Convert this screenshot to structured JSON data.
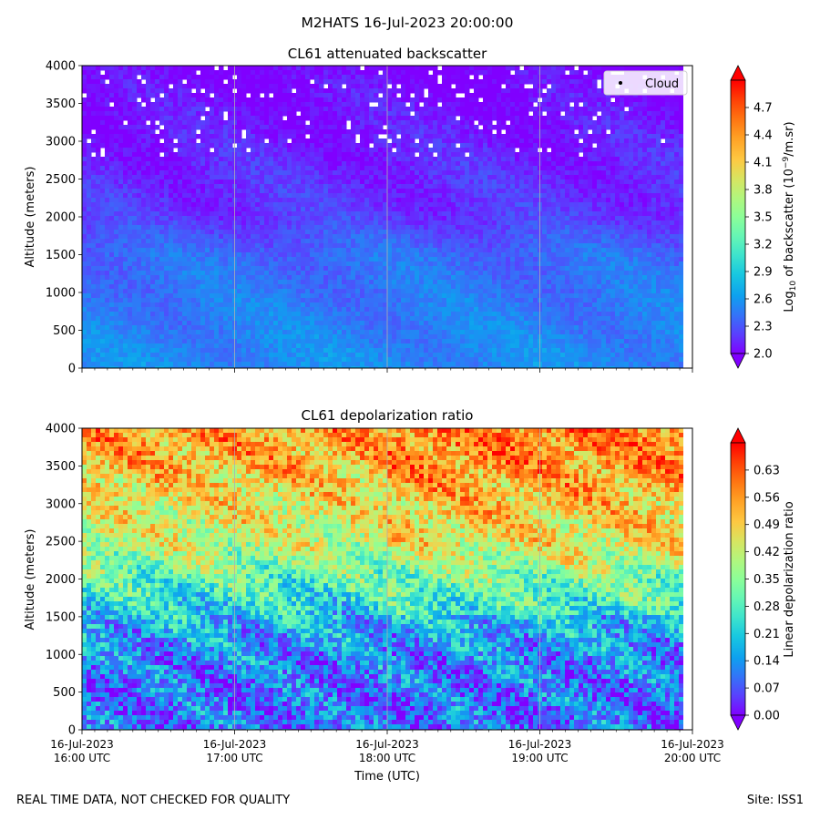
{
  "figure": {
    "title": "M2HATS 16-Jul-2023 20:00:00",
    "footer_left": "REAL TIME DATA, NOT CHECKED FOR QUALITY",
    "footer_right": "Site: ISS1"
  },
  "colors": {
    "rainbow": [
      "#8000ff",
      "#5a3ffe",
      "#3473f8",
      "#0ea0ef",
      "#18c8e0",
      "#3ee4cc",
      "#66f6b4",
      "#8cfe98",
      "#b2f67d",
      "#d8e460",
      "#fec842",
      "#ffa024",
      "#ff7311",
      "#ff3f06",
      "#ff0000"
    ],
    "grid": "#b0b0b0"
  },
  "chart_data": [
    {
      "type": "heatmap",
      "title": "CL61 attenuated backscatter",
      "ylabel": "Altitude (meters)",
      "ylim": [
        0,
        4000
      ],
      "y_ticks": [
        "0",
        "500",
        "1000",
        "1500",
        "2000",
        "2500",
        "3000",
        "3500",
        "4000"
      ],
      "x_ticks": [
        "16:00",
        "17:00",
        "18:00",
        "19:00",
        "20:00"
      ],
      "legend": [
        "Cloud"
      ],
      "legend_position": "top-right",
      "colorbar": {
        "label_prefix": "Log",
        "label_sub": "10",
        "label_mid": " of backscatter (10",
        "label_sup": "−9",
        "label_suffix": "/m.sr)",
        "vmin": 2.0,
        "vmax": 5.0,
        "ticks": [
          "2.0",
          "2.3",
          "2.6",
          "2.9",
          "3.2",
          "3.5",
          "3.8",
          "4.1",
          "4.4",
          "4.7"
        ]
      },
      "profile_altitudes": [
        0,
        500,
        1000,
        1500,
        2000,
        2500,
        3000,
        3500,
        4000
      ],
      "typical_values": [
        2.55,
        2.5,
        2.45,
        2.4,
        2.2,
        2.15,
        2.1,
        2.05,
        2.0
      ]
    },
    {
      "type": "heatmap",
      "title": "CL61 depolarization ratio",
      "ylabel": "Altitude (meters)",
      "ylim": [
        0,
        4000
      ],
      "y_ticks": [
        "0",
        "500",
        "1000",
        "1500",
        "2000",
        "2500",
        "3000",
        "3500",
        "4000"
      ],
      "x_ticks": [
        {
          "date": "16-Jul-2023",
          "time": "16:00 UTC"
        },
        {
          "date": "16-Jul-2023",
          "time": "17:00 UTC"
        },
        {
          "date": "16-Jul-2023",
          "time": "18:00 UTC"
        },
        {
          "date": "16-Jul-2023",
          "time": "19:00 UTC"
        },
        {
          "date": "16-Jul-2023",
          "time": "20:00 UTC"
        }
      ],
      "xlabel": "Time (UTC)",
      "colorbar": {
        "label": "Linear depolarization ratio",
        "vmin": 0.0,
        "vmax": 0.7,
        "ticks": [
          "0.00",
          "0.07",
          "0.14",
          "0.21",
          "0.28",
          "0.35",
          "0.42",
          "0.49",
          "0.56",
          "0.63"
        ]
      },
      "profile_altitudes": [
        0,
        500,
        1000,
        1500,
        2000,
        2500,
        3000,
        3500,
        4000
      ],
      "typical_values": [
        0.1,
        0.1,
        0.12,
        0.2,
        0.3,
        0.42,
        0.46,
        0.52,
        0.55
      ]
    }
  ]
}
